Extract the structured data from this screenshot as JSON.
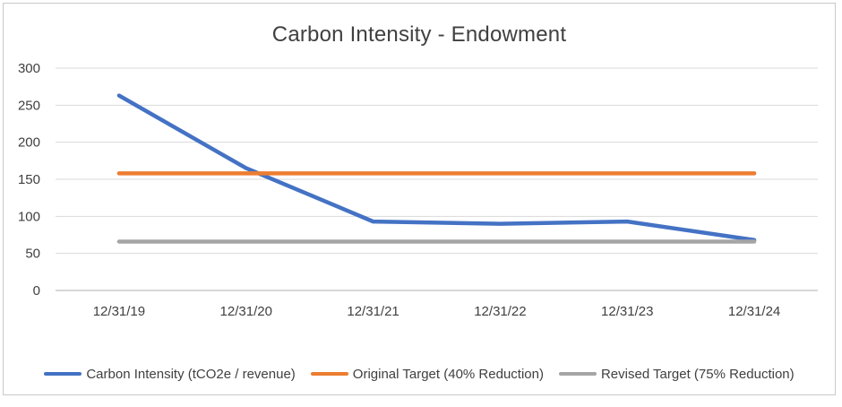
{
  "chart_data": {
    "type": "line",
    "title": "Carbon Intensity - Endowment",
    "categories": [
      "12/31/19",
      "12/31/20",
      "12/31/21",
      "12/31/22",
      "12/31/23",
      "12/31/24"
    ],
    "series": [
      {
        "name": "Carbon Intensity (tCO2e / revenue)",
        "values": [
          263,
          165,
          93,
          90,
          93,
          68
        ],
        "color": "#4472C4"
      },
      {
        "name": "Original Target (40% Reduction)",
        "values": [
          158,
          158,
          158,
          158,
          158,
          158
        ],
        "color": "#ED7D31"
      },
      {
        "name": "Revised Target (75% Reduction)",
        "values": [
          66,
          66,
          66,
          66,
          66,
          66
        ],
        "color": "#A5A5A5"
      }
    ],
    "xlabel": "",
    "ylabel": "",
    "y_axis": {
      "min": 0,
      "max": 300,
      "tick_step": 50,
      "ticks": [
        300,
        250,
        200,
        150,
        100,
        50,
        0
      ]
    },
    "grid": true,
    "legend_position": "bottom"
  },
  "palette": {
    "grid_line": "#D9D9D9",
    "axis_line": "#BFBFBF",
    "text": "#404040",
    "frame_border": "#C9C9C9",
    "background": "#FFFFFF"
  }
}
